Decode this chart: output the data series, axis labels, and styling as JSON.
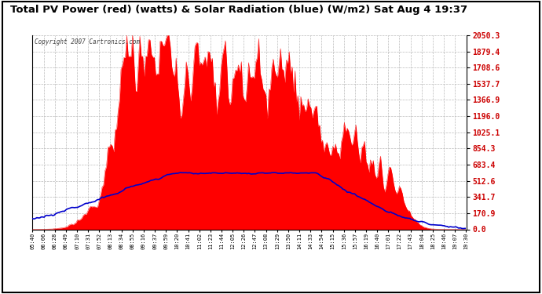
{
  "title": "Total PV Power (red) (watts) & Solar Radiation (blue) (W/m2) Sat Aug 4 19:37",
  "copyright": "Copyright 2007 Cartronics.com",
  "ylabel_right_values": [
    0.0,
    170.9,
    341.7,
    512.6,
    683.4,
    854.3,
    1025.1,
    1196.0,
    1366.9,
    1537.7,
    1708.6,
    1879.4,
    2050.3
  ],
  "ymax": 2050.3,
  "ymin": 0.0,
  "background_color": "#ffffff",
  "plot_bg_color": "#ffffff",
  "grid_color": "#bbbbbb",
  "fill_color": "#ff0000",
  "line_color": "#0000cc",
  "x_labels": [
    "05:40",
    "06:06",
    "06:28",
    "06:49",
    "07:10",
    "07:31",
    "07:52",
    "08:13",
    "08:34",
    "08:55",
    "09:16",
    "09:37",
    "09:59",
    "10:20",
    "10:41",
    "11:02",
    "11:23",
    "11:44",
    "12:05",
    "12:26",
    "12:47",
    "13:08",
    "13:29",
    "13:50",
    "14:11",
    "14:33",
    "14:54",
    "15:15",
    "15:36",
    "15:57",
    "16:19",
    "16:40",
    "17:01",
    "17:22",
    "17:43",
    "18:04",
    "18:25",
    "18:46",
    "19:07",
    "19:30"
  ]
}
